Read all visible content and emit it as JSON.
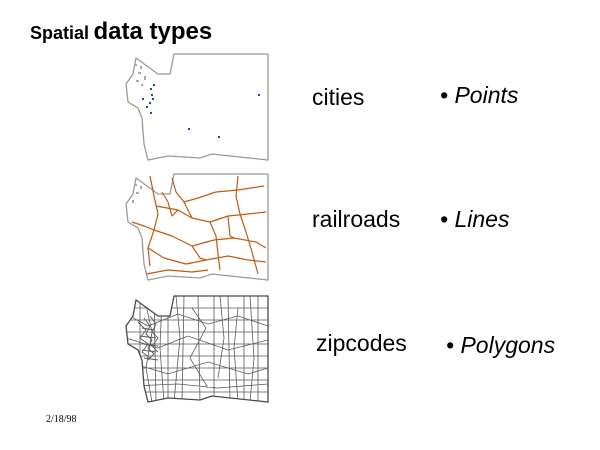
{
  "title": {
    "part1": "Spatial",
    "part2": "data types"
  },
  "rows": [
    {
      "layer": "cities",
      "type": "Points",
      "bullet": "•"
    },
    {
      "layer": "railroads",
      "type": "Lines",
      "bullet": "•"
    },
    {
      "layer": "zipcodes",
      "type": "Polygons",
      "bullet": "•"
    }
  ],
  "date": "2/18/98",
  "colors": {
    "outline": "#9a9a9a",
    "puget": "#a8a8a8",
    "points": "#1a4aa0",
    "lines": "#c05a10",
    "polygons": "#5a5a5a"
  },
  "icons": {
    "cities_map": "washington-state-points-map",
    "railroads_map": "washington-state-lines-map",
    "zipcodes_map": "washington-state-polygons-map"
  }
}
